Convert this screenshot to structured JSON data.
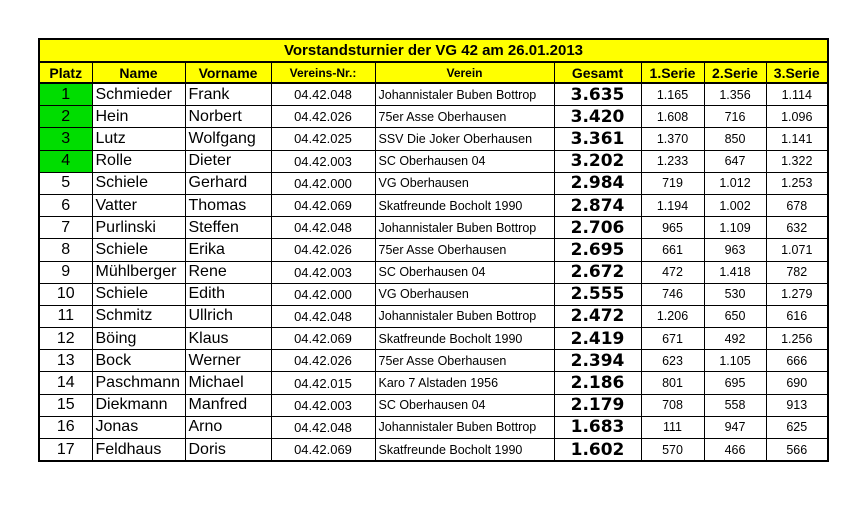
{
  "title": "Vorstandsturnier der VG 42 am 26.01.2013",
  "highlight_color": "#00dd00",
  "header_color": "#ffff00",
  "columns": [
    "Platz",
    "Name",
    "Vorname",
    "Vereins-Nr.:",
    "Verein",
    "Gesamt",
    "1.Serie",
    "2.Serie",
    "3.Serie"
  ],
  "rows": [
    [
      "1",
      "Schmieder",
      "Frank",
      "04.42.048",
      "Johannistaler Buben Bottrop",
      "3.635",
      "1.165",
      "1.356",
      "1.114"
    ],
    [
      "2",
      "Hein",
      "Norbert",
      "04.42.026",
      "75er Asse Oberhausen",
      "3.420",
      "1.608",
      "716",
      "1.096"
    ],
    [
      "3",
      "Lutz",
      "Wolfgang",
      "04.42.025",
      "SSV Die Joker Oberhausen",
      "3.361",
      "1.370",
      "850",
      "1.141"
    ],
    [
      "4",
      "Rolle",
      "Dieter",
      "04.42.003",
      "SC Oberhausen 04",
      "3.202",
      "1.233",
      "647",
      "1.322"
    ],
    [
      "5",
      "Schiele",
      "Gerhard",
      "04.42.000",
      "VG Oberhausen",
      "2.984",
      "719",
      "1.012",
      "1.253"
    ],
    [
      "6",
      "Vatter",
      "Thomas",
      "04.42.069",
      "Skatfreunde Bocholt 1990",
      "2.874",
      "1.194",
      "1.002",
      "678"
    ],
    [
      "7",
      "Purlinski",
      "Steffen",
      "04.42.048",
      "Johannistaler Buben Bottrop",
      "2.706",
      "965",
      "1.109",
      "632"
    ],
    [
      "8",
      "Schiele",
      "Erika",
      "04.42.026",
      "75er Asse Oberhausen",
      "2.695",
      "661",
      "963",
      "1.071"
    ],
    [
      "9",
      "Mühlberger",
      "Rene",
      "04.42.003",
      "SC Oberhausen 04",
      "2.672",
      "472",
      "1.418",
      "782"
    ],
    [
      "10",
      "Schiele",
      "Edith",
      "04.42.000",
      "VG Oberhausen",
      "2.555",
      "746",
      "530",
      "1.279"
    ],
    [
      "11",
      "Schmitz",
      "Ullrich",
      "04.42.048",
      "Johannistaler Buben Bottrop",
      "2.472",
      "1.206",
      "650",
      "616"
    ],
    [
      "12",
      "Böing",
      "Klaus",
      "04.42.069",
      "Skatfreunde Bocholt 1990",
      "2.419",
      "671",
      "492",
      "1.256"
    ],
    [
      "13",
      "Bock",
      "Werner",
      "04.42.026",
      "75er Asse Oberhausen",
      "2.394",
      "623",
      "1.105",
      "666"
    ],
    [
      "14",
      "Paschmann",
      "Michael",
      "04.42.015",
      "Karo 7 Alstaden 1956",
      "2.186",
      "801",
      "695",
      "690"
    ],
    [
      "15",
      "Diekmann",
      "Manfred",
      "04.42.003",
      "SC Oberhausen 04",
      "2.179",
      "708",
      "558",
      "913"
    ],
    [
      "16",
      "Jonas",
      "Arno",
      "04.42.048",
      "Johannistaler Buben Bottrop",
      "1.683",
      "111",
      "947",
      "625"
    ],
    [
      "17",
      "Feldhaus",
      "Doris",
      "04.42.069",
      "Skatfreunde Bocholt 1990",
      "1.602",
      "570",
      "466",
      "566"
    ]
  ],
  "highlighted_places": 4
}
